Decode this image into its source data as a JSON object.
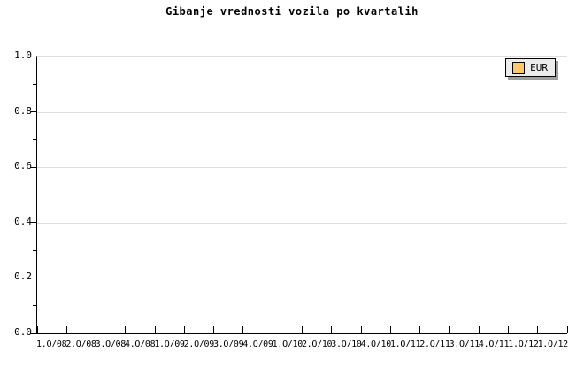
{
  "chart": {
    "title": "Gibanje vrednosti vozila po kvartalih",
    "legend": {
      "label": "EUR",
      "swatch_color": "#fec868",
      "position": "top-right"
    }
  },
  "chart_data": {
    "type": "line",
    "title": "Gibanje vrednosti vozila po kvartalih",
    "xlabel": "",
    "ylabel": "",
    "categories": [
      "1.Q/08",
      "2.Q/08",
      "3.Q/08",
      "4.Q/08",
      "1.Q/09",
      "2.Q/09",
      "3.Q/09",
      "4.Q/09",
      "1.Q/10",
      "2.Q/10",
      "3.Q/10",
      "4.Q/10",
      "1.Q/11",
      "2.Q/11",
      "3.Q/11",
      "4.Q/11",
      "1.Q/12",
      "1.Q/12"
    ],
    "series": [
      {
        "name": "EUR",
        "color": "#fec868",
        "values": []
      }
    ],
    "plot_is_empty": true,
    "ylim": [
      0.0,
      1.0
    ],
    "y_major_ticks": [
      1.0,
      0.8,
      0.6,
      0.4,
      0.2,
      0.0
    ],
    "y_minor_ticks": [
      0.9,
      0.7,
      0.5,
      0.3,
      0.1
    ],
    "gridlines_at": [
      0.8,
      0.6,
      0.4,
      0.2
    ],
    "grid": "horizontal-only",
    "legend_position": "top-right"
  },
  "colors": {
    "background": "#ffffff",
    "axis": "#000000",
    "text": "#000000",
    "gridline": "#dddddd",
    "legend_bg": "#ececec",
    "legend_border": "#000000",
    "legend_shadow": "#9e9e9e",
    "series_eur": "#fec868"
  }
}
